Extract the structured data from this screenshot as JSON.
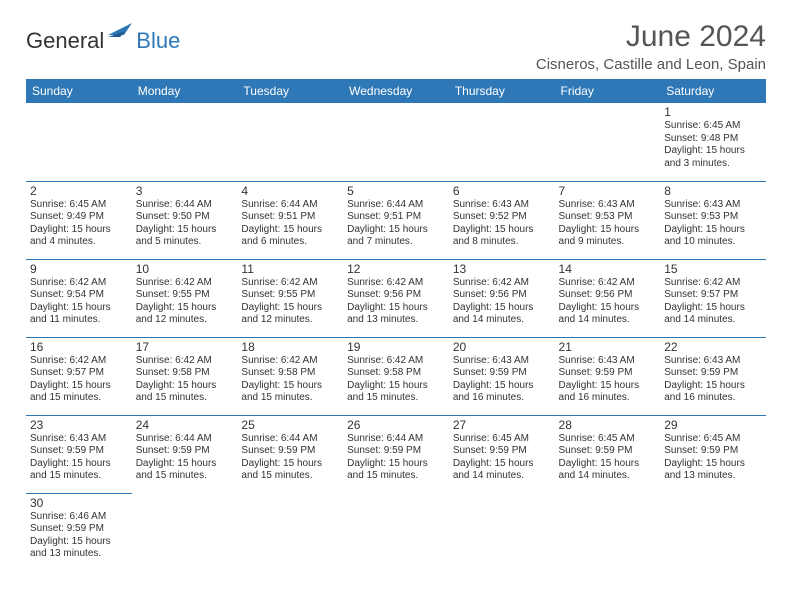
{
  "logo": {
    "text1": "General",
    "text2": "Blue"
  },
  "title": "June 2024",
  "location": "Cisneros, Castille and Leon, Spain",
  "colors": {
    "accent": "#2f78b7",
    "header_text": "#ffffff",
    "body_text": "#333333"
  },
  "day_headers": [
    "Sunday",
    "Monday",
    "Tuesday",
    "Wednesday",
    "Thursday",
    "Friday",
    "Saturday"
  ],
  "weeks": [
    [
      null,
      null,
      null,
      null,
      null,
      null,
      {
        "n": "1",
        "sr": "6:45 AM",
        "ss": "9:48 PM",
        "dl": "15 hours and 3 minutes."
      }
    ],
    [
      {
        "n": "2",
        "sr": "6:45 AM",
        "ss": "9:49 PM",
        "dl": "15 hours and 4 minutes."
      },
      {
        "n": "3",
        "sr": "6:44 AM",
        "ss": "9:50 PM",
        "dl": "15 hours and 5 minutes."
      },
      {
        "n": "4",
        "sr": "6:44 AM",
        "ss": "9:51 PM",
        "dl": "15 hours and 6 minutes."
      },
      {
        "n": "5",
        "sr": "6:44 AM",
        "ss": "9:51 PM",
        "dl": "15 hours and 7 minutes."
      },
      {
        "n": "6",
        "sr": "6:43 AM",
        "ss": "9:52 PM",
        "dl": "15 hours and 8 minutes."
      },
      {
        "n": "7",
        "sr": "6:43 AM",
        "ss": "9:53 PM",
        "dl": "15 hours and 9 minutes."
      },
      {
        "n": "8",
        "sr": "6:43 AM",
        "ss": "9:53 PM",
        "dl": "15 hours and 10 minutes."
      }
    ],
    [
      {
        "n": "9",
        "sr": "6:42 AM",
        "ss": "9:54 PM",
        "dl": "15 hours and 11 minutes."
      },
      {
        "n": "10",
        "sr": "6:42 AM",
        "ss": "9:55 PM",
        "dl": "15 hours and 12 minutes."
      },
      {
        "n": "11",
        "sr": "6:42 AM",
        "ss": "9:55 PM",
        "dl": "15 hours and 12 minutes."
      },
      {
        "n": "12",
        "sr": "6:42 AM",
        "ss": "9:56 PM",
        "dl": "15 hours and 13 minutes."
      },
      {
        "n": "13",
        "sr": "6:42 AM",
        "ss": "9:56 PM",
        "dl": "15 hours and 14 minutes."
      },
      {
        "n": "14",
        "sr": "6:42 AM",
        "ss": "9:56 PM",
        "dl": "15 hours and 14 minutes."
      },
      {
        "n": "15",
        "sr": "6:42 AM",
        "ss": "9:57 PM",
        "dl": "15 hours and 14 minutes."
      }
    ],
    [
      {
        "n": "16",
        "sr": "6:42 AM",
        "ss": "9:57 PM",
        "dl": "15 hours and 15 minutes."
      },
      {
        "n": "17",
        "sr": "6:42 AM",
        "ss": "9:58 PM",
        "dl": "15 hours and 15 minutes."
      },
      {
        "n": "18",
        "sr": "6:42 AM",
        "ss": "9:58 PM",
        "dl": "15 hours and 15 minutes."
      },
      {
        "n": "19",
        "sr": "6:42 AM",
        "ss": "9:58 PM",
        "dl": "15 hours and 15 minutes."
      },
      {
        "n": "20",
        "sr": "6:43 AM",
        "ss": "9:59 PM",
        "dl": "15 hours and 16 minutes."
      },
      {
        "n": "21",
        "sr": "6:43 AM",
        "ss": "9:59 PM",
        "dl": "15 hours and 16 minutes."
      },
      {
        "n": "22",
        "sr": "6:43 AM",
        "ss": "9:59 PM",
        "dl": "15 hours and 16 minutes."
      }
    ],
    [
      {
        "n": "23",
        "sr": "6:43 AM",
        "ss": "9:59 PM",
        "dl": "15 hours and 15 minutes."
      },
      {
        "n": "24",
        "sr": "6:44 AM",
        "ss": "9:59 PM",
        "dl": "15 hours and 15 minutes."
      },
      {
        "n": "25",
        "sr": "6:44 AM",
        "ss": "9:59 PM",
        "dl": "15 hours and 15 minutes."
      },
      {
        "n": "26",
        "sr": "6:44 AM",
        "ss": "9:59 PM",
        "dl": "15 hours and 15 minutes."
      },
      {
        "n": "27",
        "sr": "6:45 AM",
        "ss": "9:59 PM",
        "dl": "15 hours and 14 minutes."
      },
      {
        "n": "28",
        "sr": "6:45 AM",
        "ss": "9:59 PM",
        "dl": "15 hours and 14 minutes."
      },
      {
        "n": "29",
        "sr": "6:45 AM",
        "ss": "9:59 PM",
        "dl": "15 hours and 13 minutes."
      }
    ],
    [
      {
        "n": "30",
        "sr": "6:46 AM",
        "ss": "9:59 PM",
        "dl": "15 hours and 13 minutes."
      },
      null,
      null,
      null,
      null,
      null,
      null
    ]
  ],
  "labels": {
    "sunrise": "Sunrise: ",
    "sunset": "Sunset: ",
    "daylight": "Daylight: "
  }
}
